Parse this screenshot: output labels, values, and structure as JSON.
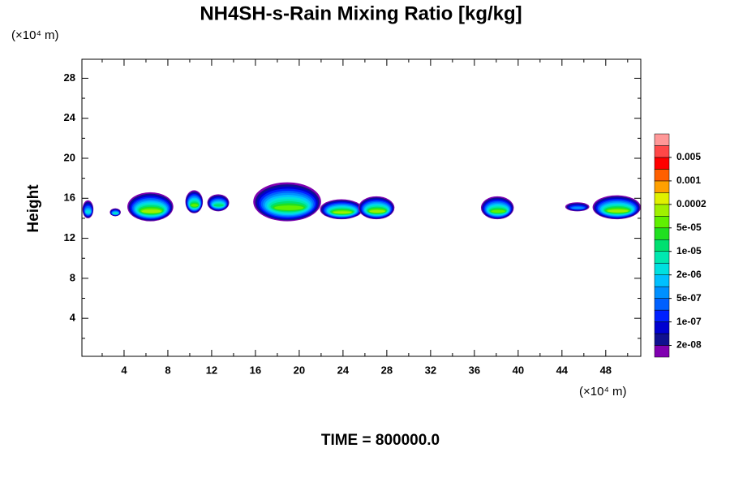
{
  "chart_data": {
    "type": "contour",
    "title": "NH4SH-s-Rain Mixing Ratio [kg/kg]",
    "y_unit": "(×10⁴ m)",
    "x_unit": "(×10⁴ m)",
    "ylabel": "Height",
    "footer": "TIME = 800000.0",
    "xlim": [
      0.15,
      51.2
    ],
    "ylim": [
      0.2,
      29.9
    ],
    "xticks": [
      4,
      8,
      12,
      16,
      20,
      24,
      28,
      32,
      36,
      40,
      44,
      48
    ],
    "yticks": [
      4,
      8,
      12,
      16,
      20,
      24,
      28
    ],
    "xminorticks": [
      2,
      6,
      10,
      14,
      18,
      22,
      26,
      30,
      34,
      38,
      42,
      46,
      50
    ],
    "yminorticks": [
      2,
      6,
      10,
      14,
      18,
      22,
      26
    ],
    "colors": [
      "#8000b0",
      "#101090",
      "#0000d0",
      "#0020ff",
      "#0060ff",
      "#0090ff",
      "#00c0ff",
      "#00e0e0",
      "#00e8b0",
      "#00e070",
      "#20e020",
      "#60f000",
      "#a0f000",
      "#e0f000",
      "#ffa000",
      "#ff6000",
      "#ff0000",
      "#ff4848",
      "#ff9898"
    ],
    "levels": [
      {
        "value": 2e-08,
        "label": "2e-08"
      },
      {
        "value": 1e-07,
        "label": "1e-07"
      },
      {
        "value": 5e-07,
        "label": "5e-07"
      },
      {
        "value": 2e-06,
        "label": "2e-06"
      },
      {
        "value": 1e-05,
        "label": "1e-05"
      },
      {
        "value": 5e-05,
        "label": "5e-05"
      },
      0.0002,
      0.001,
      0.005
    ],
    "blobs": [
      {
        "x": [
          0.2,
          1.2
        ],
        "y": [
          14.0,
          15.8
        ],
        "level": 7
      },
      {
        "x": [
          2.7,
          3.7
        ],
        "y": [
          14.2,
          15.0
        ],
        "level": 8
      },
      {
        "x": [
          4.3,
          8.5
        ],
        "y": [
          13.7,
          16.6
        ],
        "level": 12
      },
      {
        "x": [
          9.6,
          11.2
        ],
        "y": [
          14.5,
          16.8
        ],
        "level": 11
      },
      {
        "x": [
          11.6,
          13.6
        ],
        "y": [
          14.7,
          16.4
        ],
        "level": 9
      },
      {
        "x": [
          15.8,
          22.0
        ],
        "y": [
          13.7,
          17.6
        ],
        "level": 11
      },
      {
        "x": [
          21.9,
          25.8
        ],
        "y": [
          13.9,
          15.9
        ],
        "level": 12
      },
      {
        "x": [
          25.4,
          28.7
        ],
        "y": [
          13.9,
          16.2
        ],
        "level": 12
      },
      {
        "x": [
          36.6,
          39.6
        ],
        "y": [
          13.9,
          16.2
        ],
        "level": 11
      },
      {
        "x": [
          44.3,
          46.5
        ],
        "y": [
          14.7,
          15.6
        ],
        "level": 5
      },
      {
        "x": [
          46.8,
          51.2
        ],
        "y": [
          13.9,
          16.3
        ],
        "level": 12
      }
    ]
  }
}
